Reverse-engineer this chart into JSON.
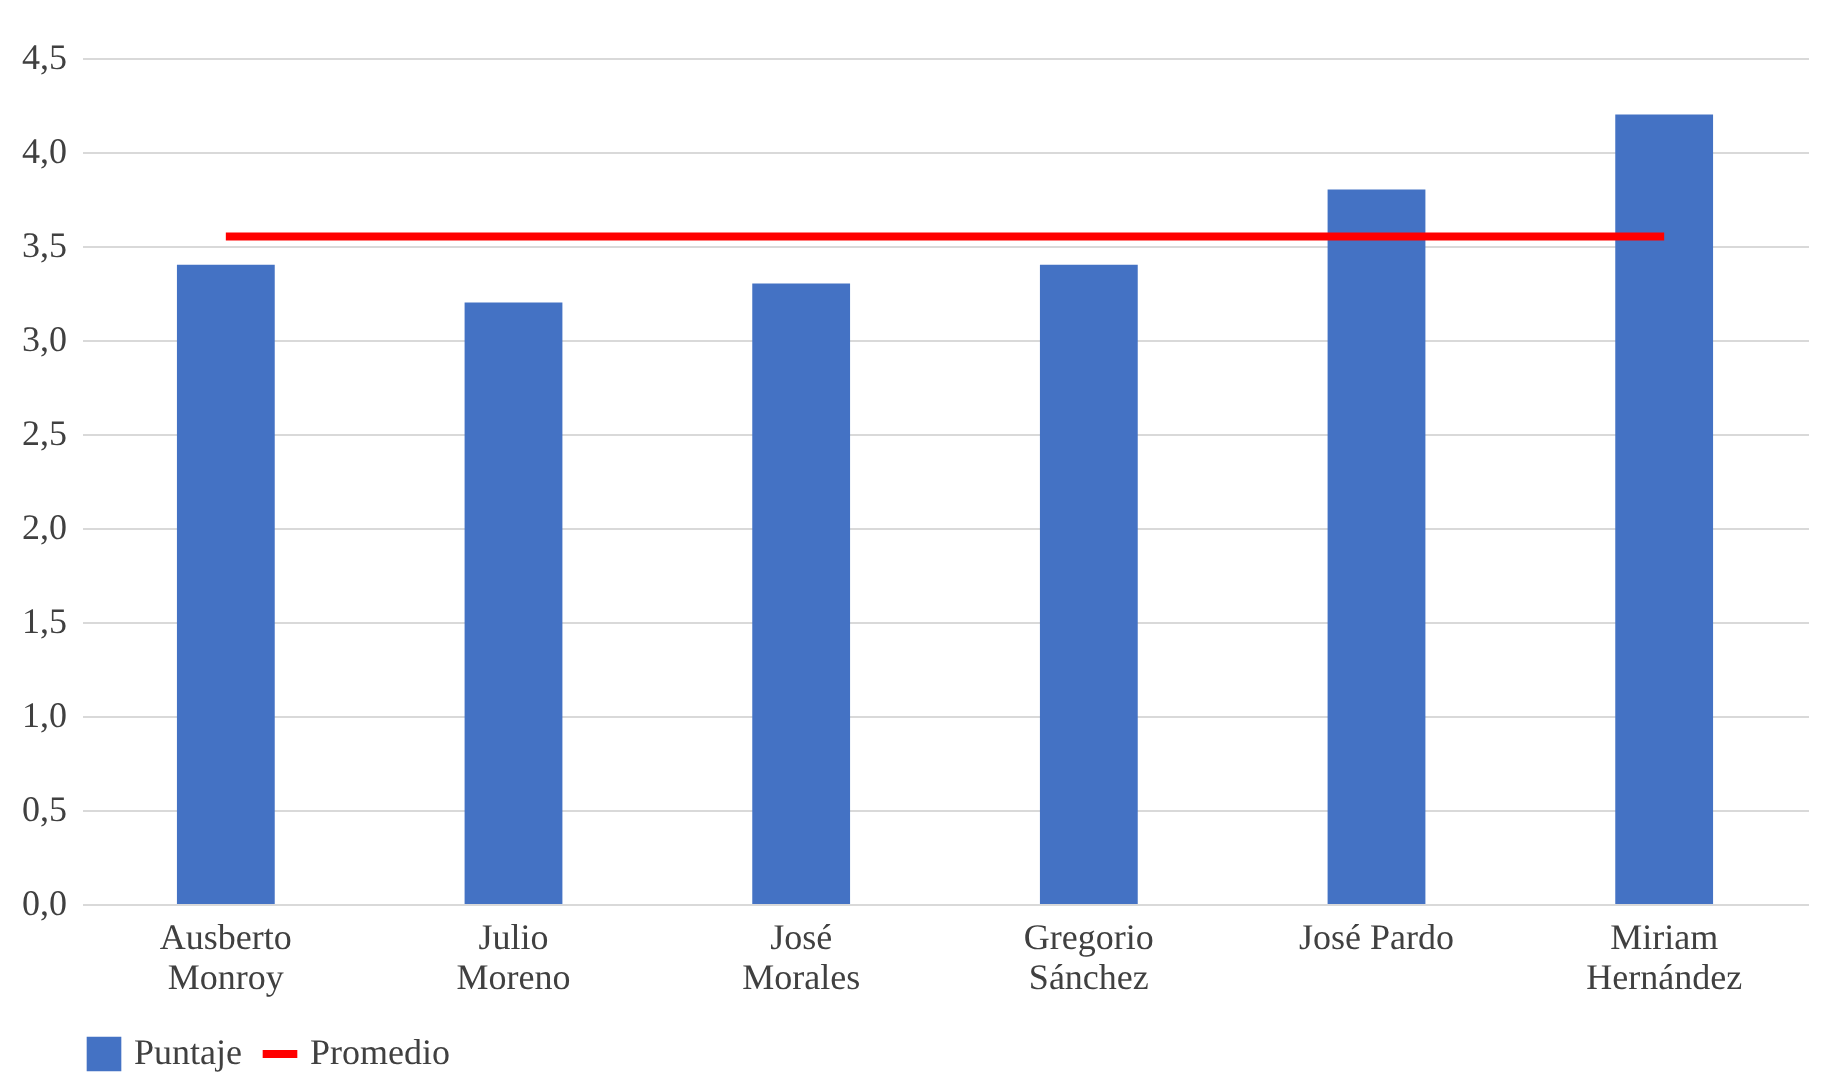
{
  "chart_data": {
    "type": "bar",
    "categories": [
      "Ausberto\nMonroy",
      "Julio\nMoreno",
      "José\nMorales",
      "Gregorio\nSánchez",
      "José Pardo",
      "Miriam\nHernández"
    ],
    "series": [
      {
        "name": "Puntaje",
        "color": "#4472c4",
        "values": [
          3.4,
          3.2,
          3.3,
          3.4,
          3.8,
          4.2
        ]
      },
      {
        "name": "Promedio",
        "type": "line",
        "color": "#ff0000",
        "values": [
          3.55,
          3.55,
          3.55,
          3.55,
          3.55,
          3.55
        ]
      }
    ],
    "ylim": [
      0,
      4.5
    ],
    "yticks": [
      {
        "value": 0,
        "label": "0,0"
      },
      {
        "value": 0.5,
        "label": "0,5"
      },
      {
        "value": 1,
        "label": "1,0"
      },
      {
        "value": 1.5,
        "label": "1,5"
      },
      {
        "value": 2,
        "label": "2,0"
      },
      {
        "value": 2.5,
        "label": "2,5"
      },
      {
        "value": 3,
        "label": "3,0"
      },
      {
        "value": 3.5,
        "label": "3,5"
      },
      {
        "value": 4,
        "label": "4,0"
      },
      {
        "value": 4.5,
        "label": "4,5"
      }
    ],
    "grid": "y",
    "legend": "bottom",
    "marker": "none",
    "line_style": "solid"
  }
}
